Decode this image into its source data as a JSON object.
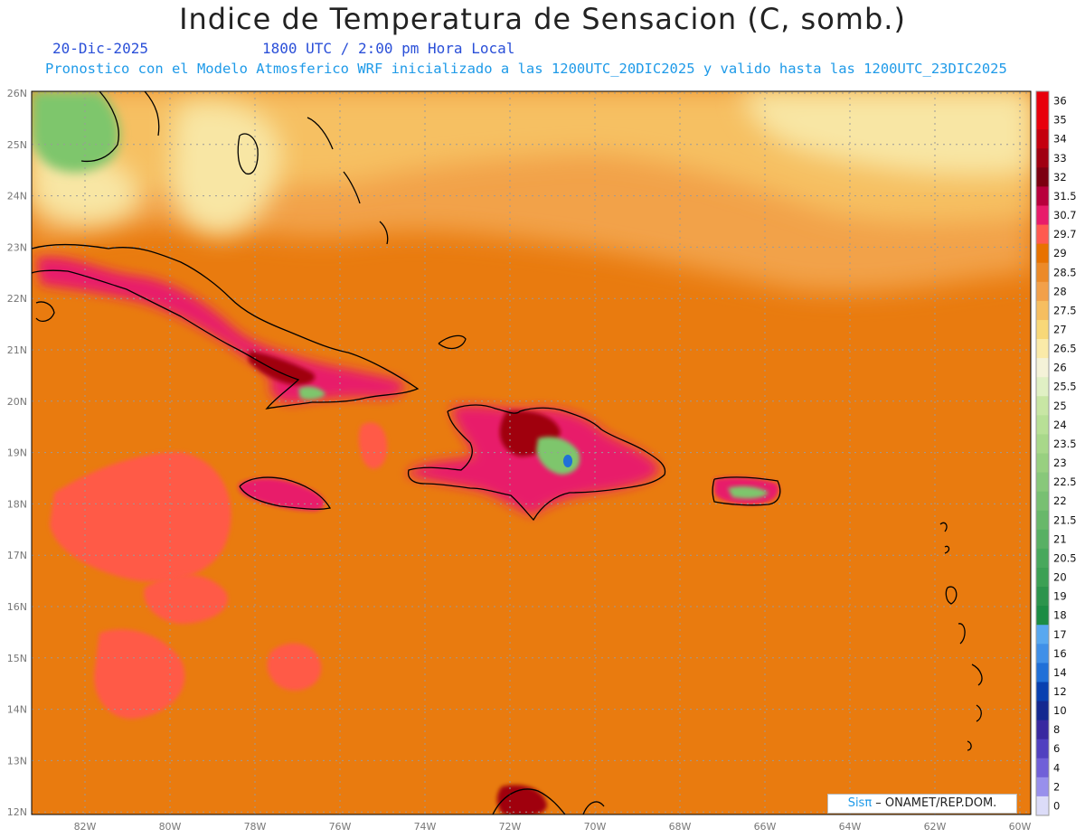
{
  "title": "Indice de Temperatura de Sensacion (C, somb.)",
  "date": "20-Dic-2025",
  "time_label": "1800 UTC / 2:00 pm Hora Local",
  "forecast_label": "Pronostico con el Modelo Atmosferico WRF inicializado a las 1200UTC_20DIC2025 y valido hasta las  1200UTC_23DIC2025",
  "credit": {
    "brand": "Sisπ",
    "text": " – ONAMET/REP.DOM."
  },
  "lat_labels": [
    "26N",
    "25N",
    "24N",
    "23N",
    "22N",
    "21N",
    "20N",
    "19N",
    "18N",
    "17N",
    "16N",
    "15N",
    "14N",
    "13N",
    "12N"
  ],
  "lon_labels": [
    "82W",
    "80W",
    "78W",
    "76W",
    "74W",
    "72W",
    "70W",
    "68W",
    "66W",
    "64W",
    "62W",
    "60W"
  ],
  "colorbar": {
    "labels": [
      "36",
      "35",
      "34",
      "33",
      "32",
      "31.5",
      "30.7",
      "29.7",
      "29",
      "28.5",
      "28",
      "27.5",
      "27",
      "26.5",
      "26",
      "25.5",
      "25",
      "24",
      "23.5",
      "23",
      "22.5",
      "22",
      "21.5",
      "21",
      "20.5",
      "20",
      "19",
      "18",
      "17",
      "16",
      "14",
      "12",
      "10",
      "8",
      "6",
      "4",
      "2",
      "0"
    ],
    "colors": [
      "#e8000b",
      "#e8000b",
      "#c4000e",
      "#a00010",
      "#7c0010",
      "#b8003c",
      "#e81c6a",
      "#ff5a50",
      "#e87200",
      "#ec8a28",
      "#f2a04a",
      "#f6be60",
      "#f8d878",
      "#faeaa8",
      "#f4f2d8",
      "#e0f0c4",
      "#c8e6a4",
      "#b8e096",
      "#a8d88a",
      "#98d080",
      "#88c87a",
      "#78c072",
      "#68b86a",
      "#58b064",
      "#48a85c",
      "#3ca054",
      "#2c944c",
      "#1c8c44",
      "#58a8f0",
      "#4090e8",
      "#2070d8",
      "#0840b0",
      "#142890",
      "#3828a0",
      "#5040c0",
      "#7060d8",
      "#9890ec",
      "#dcdcf8"
    ]
  },
  "colors": {
    "sea_base": "#e97b0f",
    "sea_warm": "#ff5a46",
    "north_mid": "#f2a24a",
    "north_light": "#f6c062",
    "pale": "#f8e6a4",
    "green": "#7ec66c",
    "land_hot": "#e81c6a",
    "land_very_hot": "#a00010",
    "coast": "#000000"
  }
}
